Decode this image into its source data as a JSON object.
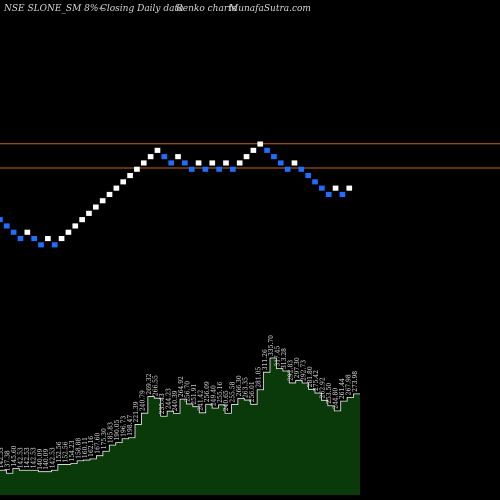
{
  "header": {
    "symbol": "NSE SLONE_SM 8%~",
    "description": "Closing Daily data",
    "chart_kind": "Renko charts",
    "site": "MunafaSutra.com"
  },
  "colors": {
    "background": "#000000",
    "up_brick": "#ffffff",
    "down_brick": "#1e6fff",
    "level_line": "#c8641e",
    "volume_fill": "#0a3a0a",
    "volume_stroke": "#f0f0f0"
  },
  "chart_data": [
    {
      "type": "renko",
      "title": "NSE SLONE_SM 8%~ Closing Daily data Renko charts",
      "direction": [
        "down",
        "down",
        "down",
        "down",
        "up",
        "down",
        "down",
        "up",
        "down",
        "up",
        "up",
        "up",
        "up",
        "up",
        "up",
        "up",
        "up",
        "up",
        "up",
        "up",
        "up",
        "up",
        "up",
        "up",
        "down",
        "down",
        "up",
        "down",
        "down",
        "up",
        "down",
        "up",
        "down",
        "up",
        "down",
        "up",
        "up",
        "up",
        "up",
        "down",
        "down",
        "down",
        "down",
        "up",
        "down",
        "down",
        "down",
        "down",
        "down",
        "up",
        "down",
        "up"
      ],
      "level_lines": [
        263,
        248
      ],
      "ylim": [
        190,
        290
      ]
    },
    {
      "type": "area",
      "values": [
        142.53,
        137.38,
        145.6,
        142.53,
        142.53,
        142.53,
        140.09,
        140.09,
        142.53,
        152.56,
        152.56,
        154.23,
        158.88,
        160.11,
        162.16,
        167.6,
        175.3,
        185.83,
        190.05,
        196.73,
        198.47,
        221.39,
        240.79,
        269.32,
        266.55,
        235.43,
        244.23,
        240.39,
        264.92,
        256.7,
        251.91,
        241.42,
        256.09,
        249.4,
        255.16,
        240.65,
        255.58,
        266.3,
        263.35,
        256.01,
        281.05,
        311.26,
        335.7,
        317.45,
        313.28,
        292.83,
        297.3,
        292.73,
        281.8,
        275.42,
        262.92,
        253.5,
        244.8,
        261.44,
        267.98,
        273.98
      ],
      "labels": [
        "142.53",
        "137.38",
        "145.60",
        "142.53",
        "142.53",
        "142.53",
        "140.09",
        "140.09",
        "142.53",
        "152.56",
        "152.56",
        "154.23",
        "158.88",
        "160.11",
        "162.16",
        "167.60",
        "175.30",
        "185.83",
        "190.05",
        "196.73",
        "198.47",
        "221.39",
        "240.79",
        "269.32",
        "266.55",
        "235.43",
        "244.23",
        "240.39",
        "264.92",
        "256.70",
        "251.91",
        "241.42",
        "256.09",
        "249.40",
        "255.16",
        "240.65",
        "255.58",
        "266.30",
        "263.35",
        "256.01",
        "281.05",
        "311.26",
        "335.70",
        "317.45",
        "313.28",
        "292.83",
        "297.30",
        "292.73",
        "281.80",
        "275.42",
        "262.92",
        "253.50",
        "244.80",
        "261.44",
        "267.98",
        "273.98"
      ]
    }
  ]
}
